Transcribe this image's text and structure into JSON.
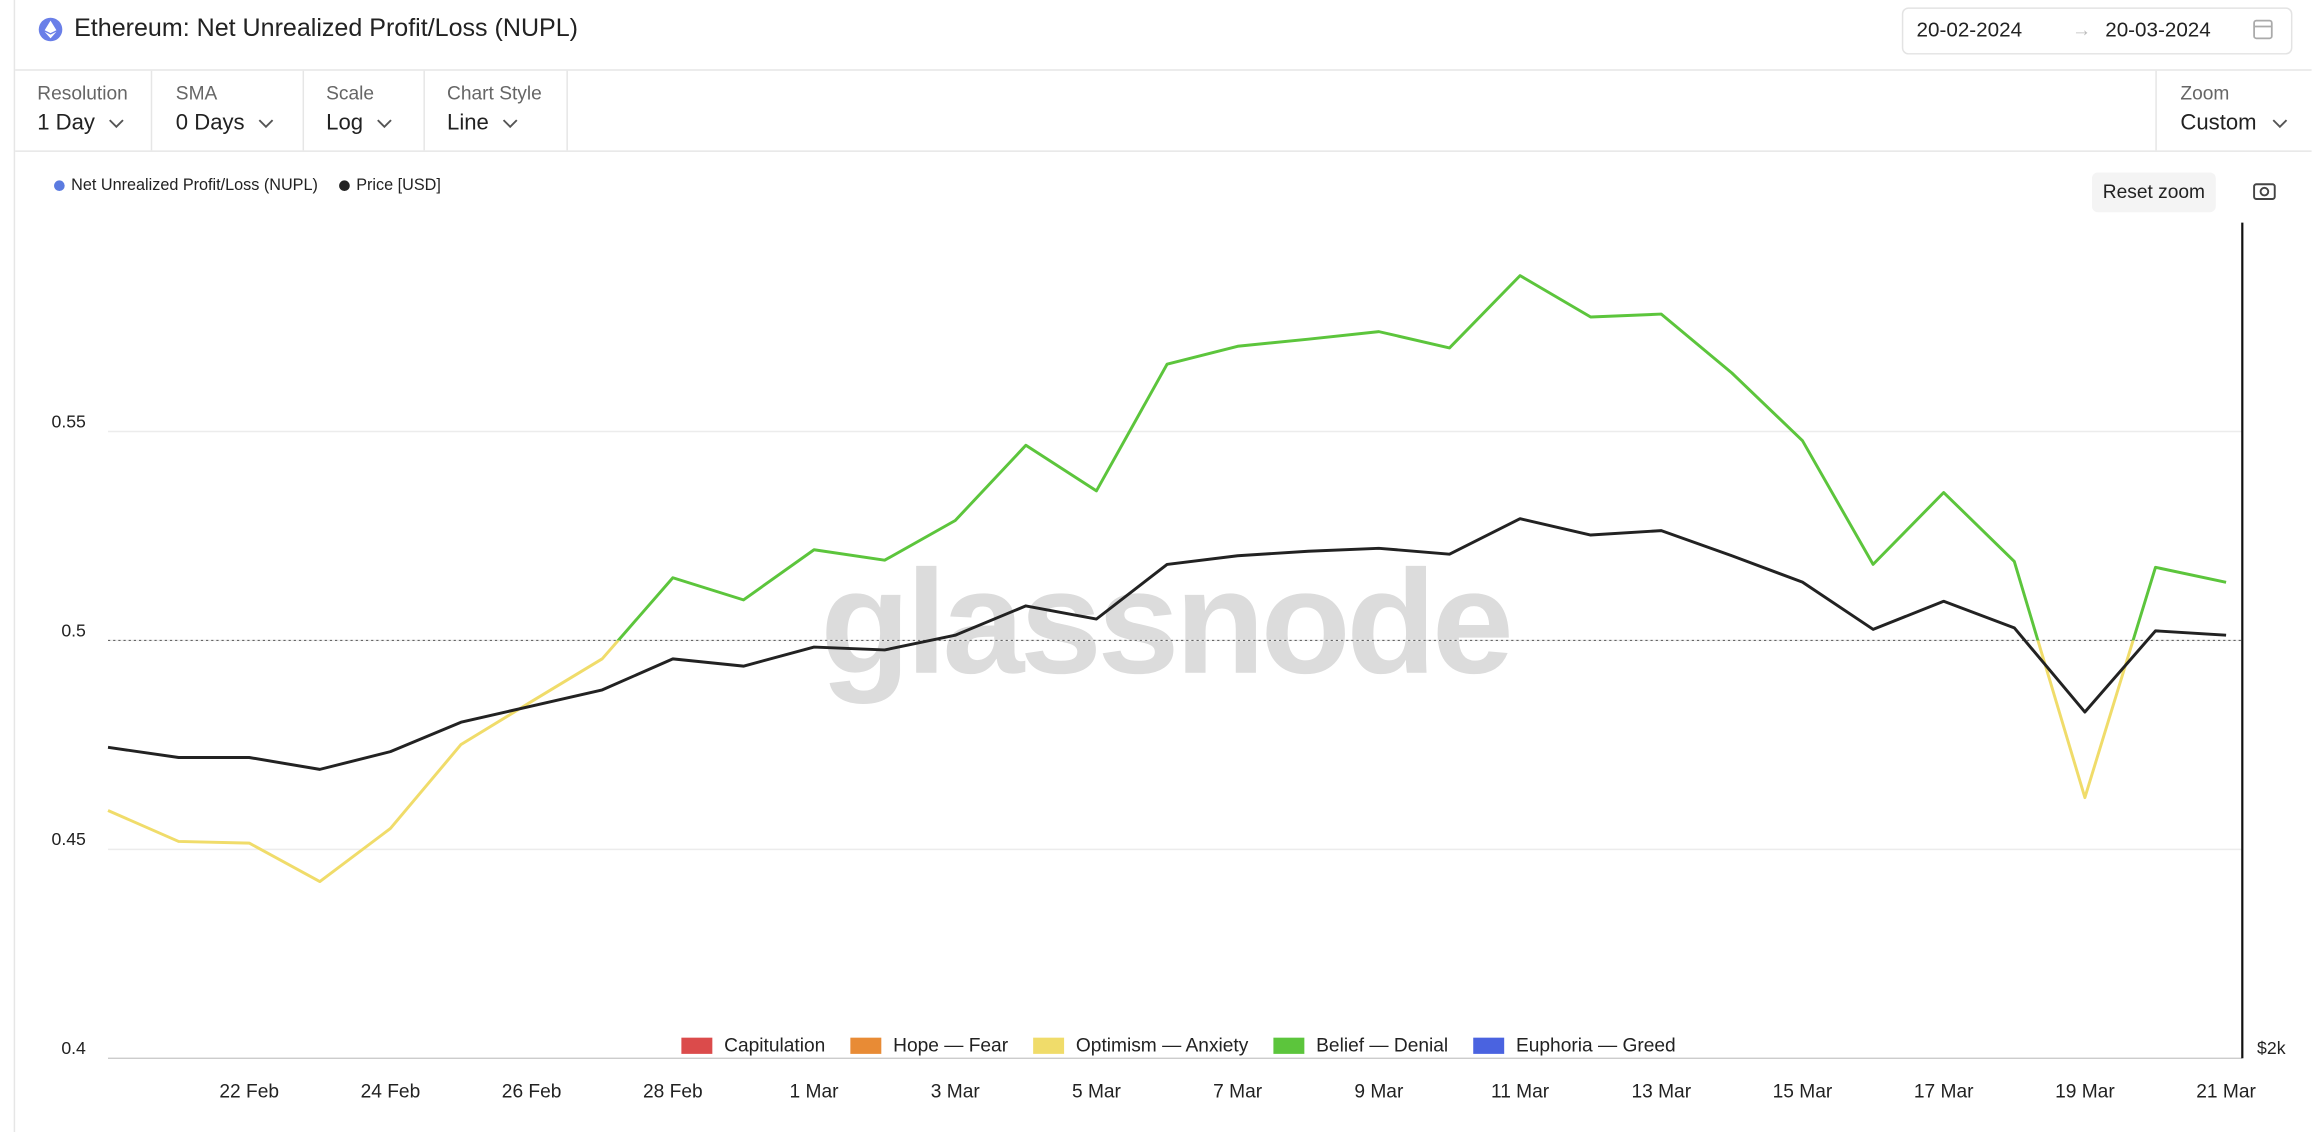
{
  "ui": {
    "date_from": "20-02-2024",
    "date_to": "20-03-2024",
    "controls": [
      {
        "label": "Resolution",
        "value": "1 Day"
      },
      {
        "label": "SMA",
        "value": "0 Days"
      },
      {
        "label": "Scale",
        "value": "Log"
      },
      {
        "label": "Chart Style",
        "value": "Line"
      }
    ],
    "zoom": {
      "label": "Zoom",
      "value": "Custom"
    },
    "reset_zoom": "Reset zoom"
  },
  "chart_data": {
    "type": "line",
    "title": "Ethereum: Net Unrealized Profit/Loss (NUPL)",
    "watermark": "glassnode",
    "categories": [
      null,
      null,
      "22 Feb",
      null,
      "24 Feb",
      null,
      "26 Feb",
      null,
      "28 Feb",
      null,
      "1 Mar",
      null,
      "3 Mar",
      null,
      "5 Mar",
      null,
      "7 Mar",
      null,
      "9 Mar",
      null,
      "11 Mar",
      null,
      "13 Mar",
      null,
      "15 Mar",
      null,
      "17 Mar",
      null,
      "19 Mar",
      null,
      "21 Mar"
    ],
    "series": [
      {
        "name": "Net Unrealized Profit/Loss (NUPL)",
        "color": "#5b7be0",
        "zone_colored": true,
        "values": [
          0.4593,
          0.4519,
          0.4515,
          0.4423,
          0.455,
          0.4751,
          0.4854,
          0.4956,
          0.515,
          0.5097,
          0.5217,
          0.5192,
          0.5287,
          0.5467,
          0.5358,
          0.5661,
          0.5704,
          0.5721,
          0.5739,
          0.57,
          0.5873,
          0.5774,
          0.5781,
          0.564,
          0.5478,
          0.5182,
          0.5354,
          0.5189,
          0.4624,
          0.5175,
          0.5139
        ]
      },
      {
        "name": "Price [USD]",
        "color": "#222222",
        "axis": "y2",
        "values": [
          3010,
          2970,
          2970,
          2924,
          2993,
          3111,
          3178,
          3246,
          3381,
          3349,
          3434,
          3421,
          3488,
          3625,
          3563,
          3828,
          3872,
          3895,
          3910,
          3880,
          4065,
          3979,
          4002,
          3872,
          3740,
          3515,
          3647,
          3522,
          3153,
          3508,
          3488
        ]
      }
    ],
    "zones": [
      {
        "name": "Capitulation",
        "color": "#db4b4b",
        "range": [
          null,
          0
        ]
      },
      {
        "name": "Hope — Fear",
        "color": "#e88b35",
        "range": [
          0,
          0.25
        ]
      },
      {
        "name": "Optimism — Anxiety",
        "color": "#f0dc6a",
        "range": [
          0.25,
          0.5
        ]
      },
      {
        "name": "Belief — Denial",
        "color": "#5cc53c",
        "range": [
          0.5,
          0.75
        ]
      },
      {
        "name": "Euphoria — Greed",
        "color": "#4a63e0",
        "range": [
          0.75,
          null
        ]
      }
    ],
    "ylim": [
      0.4,
      0.6
    ],
    "yticks": [
      0.4,
      0.45,
      0.5,
      0.55
    ],
    "y2lim": [
      2000,
      6000
    ],
    "y2ticks": [
      {
        "value": 2000,
        "label": "$2k"
      }
    ],
    "y2_log": true,
    "grid": true
  }
}
